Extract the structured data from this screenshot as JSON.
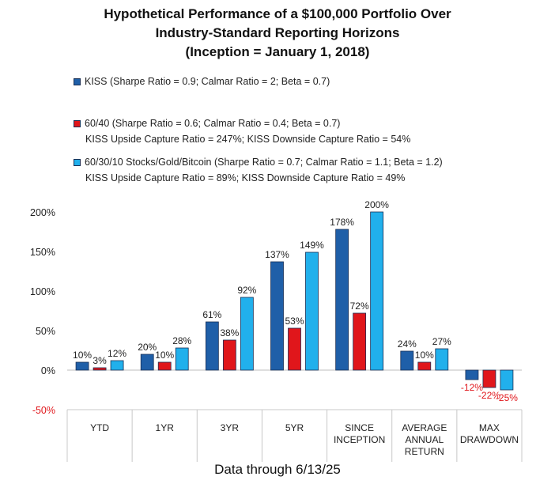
{
  "title": {
    "line1": "Hypothetical Performance of a $100,000 Portfolio Over",
    "line2": "Industry-Standard Reporting Horizons",
    "line3": "(Inception = January 1, 2018)"
  },
  "legend": [
    {
      "label": "KISS (Sharpe Ratio = 0.9; Calmar Ratio = 2; Beta = 0.7)",
      "extra": "",
      "color": "#1f5fa8"
    },
    {
      "label": "60/40 (Sharpe Ratio = 0.6; Calmar Ratio = 0.4; Beta = 0.7)",
      "extra": "KISS Upside Capture Ratio = 247%; KISS Downside Capture Ratio = 54%",
      "color": "#e0161b"
    },
    {
      "label": "60/30/10 Stocks/Gold/Bitcoin (Sharpe Ratio = 0.7; Calmar Ratio = 1.1; Beta = 1.2)",
      "extra": "KISS Upside Capture Ratio = 89%; KISS Downside Capture Ratio = 49%",
      "color": "#21b0ec"
    }
  ],
  "footer": "Data through 6/13/25",
  "chart_data": {
    "type": "bar",
    "categories": [
      "YTD",
      "1YR",
      "3YR",
      "5YR",
      "SINCE INCEPTION",
      "AVERAGE ANNUAL RETURN",
      "MAX DRAWDOWN"
    ],
    "category_lines": [
      [
        "YTD"
      ],
      [
        "1YR"
      ],
      [
        "3YR"
      ],
      [
        "5YR"
      ],
      [
        "SINCE",
        "INCEPTION"
      ],
      [
        "AVERAGE",
        "ANNUAL",
        "RETURN"
      ],
      [
        "MAX",
        "DRAWDOWN"
      ]
    ],
    "series": [
      {
        "name": "KISS",
        "values": [
          10,
          20,
          61,
          137,
          178,
          24,
          -12
        ],
        "labels": [
          "10%",
          "20%",
          "61%",
          "137%",
          "178%",
          "24%",
          "-12%"
        ],
        "color": "#1f5fa8"
      },
      {
        "name": "60/40",
        "values": [
          3,
          10,
          38,
          53,
          72,
          10,
          -22
        ],
        "labels": [
          "3%",
          "10%",
          "38%",
          "53%",
          "72%",
          "10%",
          "-22%"
        ],
        "color": "#e0161b"
      },
      {
        "name": "60/30/10 Stocks/Gold/Bitcoin",
        "values": [
          12,
          28,
          92,
          149,
          200,
          27,
          -25
        ],
        "labels": [
          "12%",
          "28%",
          "92%",
          "149%",
          "200%",
          "27%",
          "-25%"
        ],
        "color": "#21b0ec"
      }
    ],
    "y_ticks": [
      {
        "value": 200,
        "label": "200%"
      },
      {
        "value": 150,
        "label": "150%"
      },
      {
        "value": 100,
        "label": "100%"
      },
      {
        "value": 50,
        "label": "50%"
      },
      {
        "value": 0,
        "label": "0%"
      },
      {
        "value": -50,
        "label": "-50%"
      }
    ],
    "ylim": [
      -50,
      200
    ],
    "negative_label_color": "#e0161b",
    "negative_tick_color": "#e0161b",
    "grid": false,
    "legend_position": "top"
  }
}
